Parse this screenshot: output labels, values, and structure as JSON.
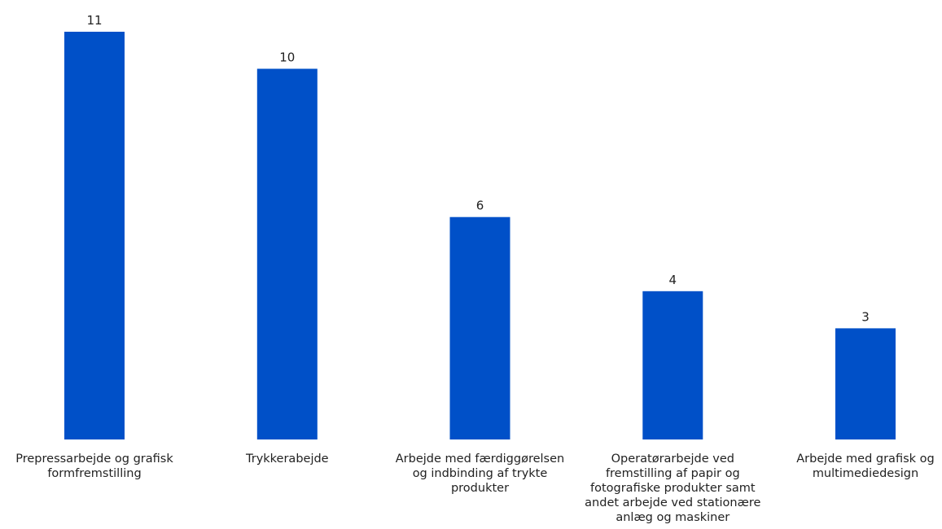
{
  "chart_data": {
    "type": "bar",
    "title": "",
    "xlabel": "",
    "ylabel": "",
    "ylim": [
      0,
      11
    ],
    "grid": false,
    "legend": "none",
    "bar_color": "#0050C8",
    "categories": [
      [
        "Prepressarbejde og grafisk",
        "formfremstilling"
      ],
      [
        "Trykkerabejde"
      ],
      [
        "Arbejde med færdiggørelsen",
        "og indbinding af trykte",
        "produkter"
      ],
      [
        "Operatørarbejde ved",
        "fremstilling af papir og",
        "fotografiske produkter samt",
        "andet arbejde ved stationære",
        "anlæg og maskiner"
      ],
      [
        "Arbejde med grafisk og",
        "multimediedesign"
      ]
    ],
    "values": [
      11,
      10,
      6,
      4,
      3
    ]
  }
}
